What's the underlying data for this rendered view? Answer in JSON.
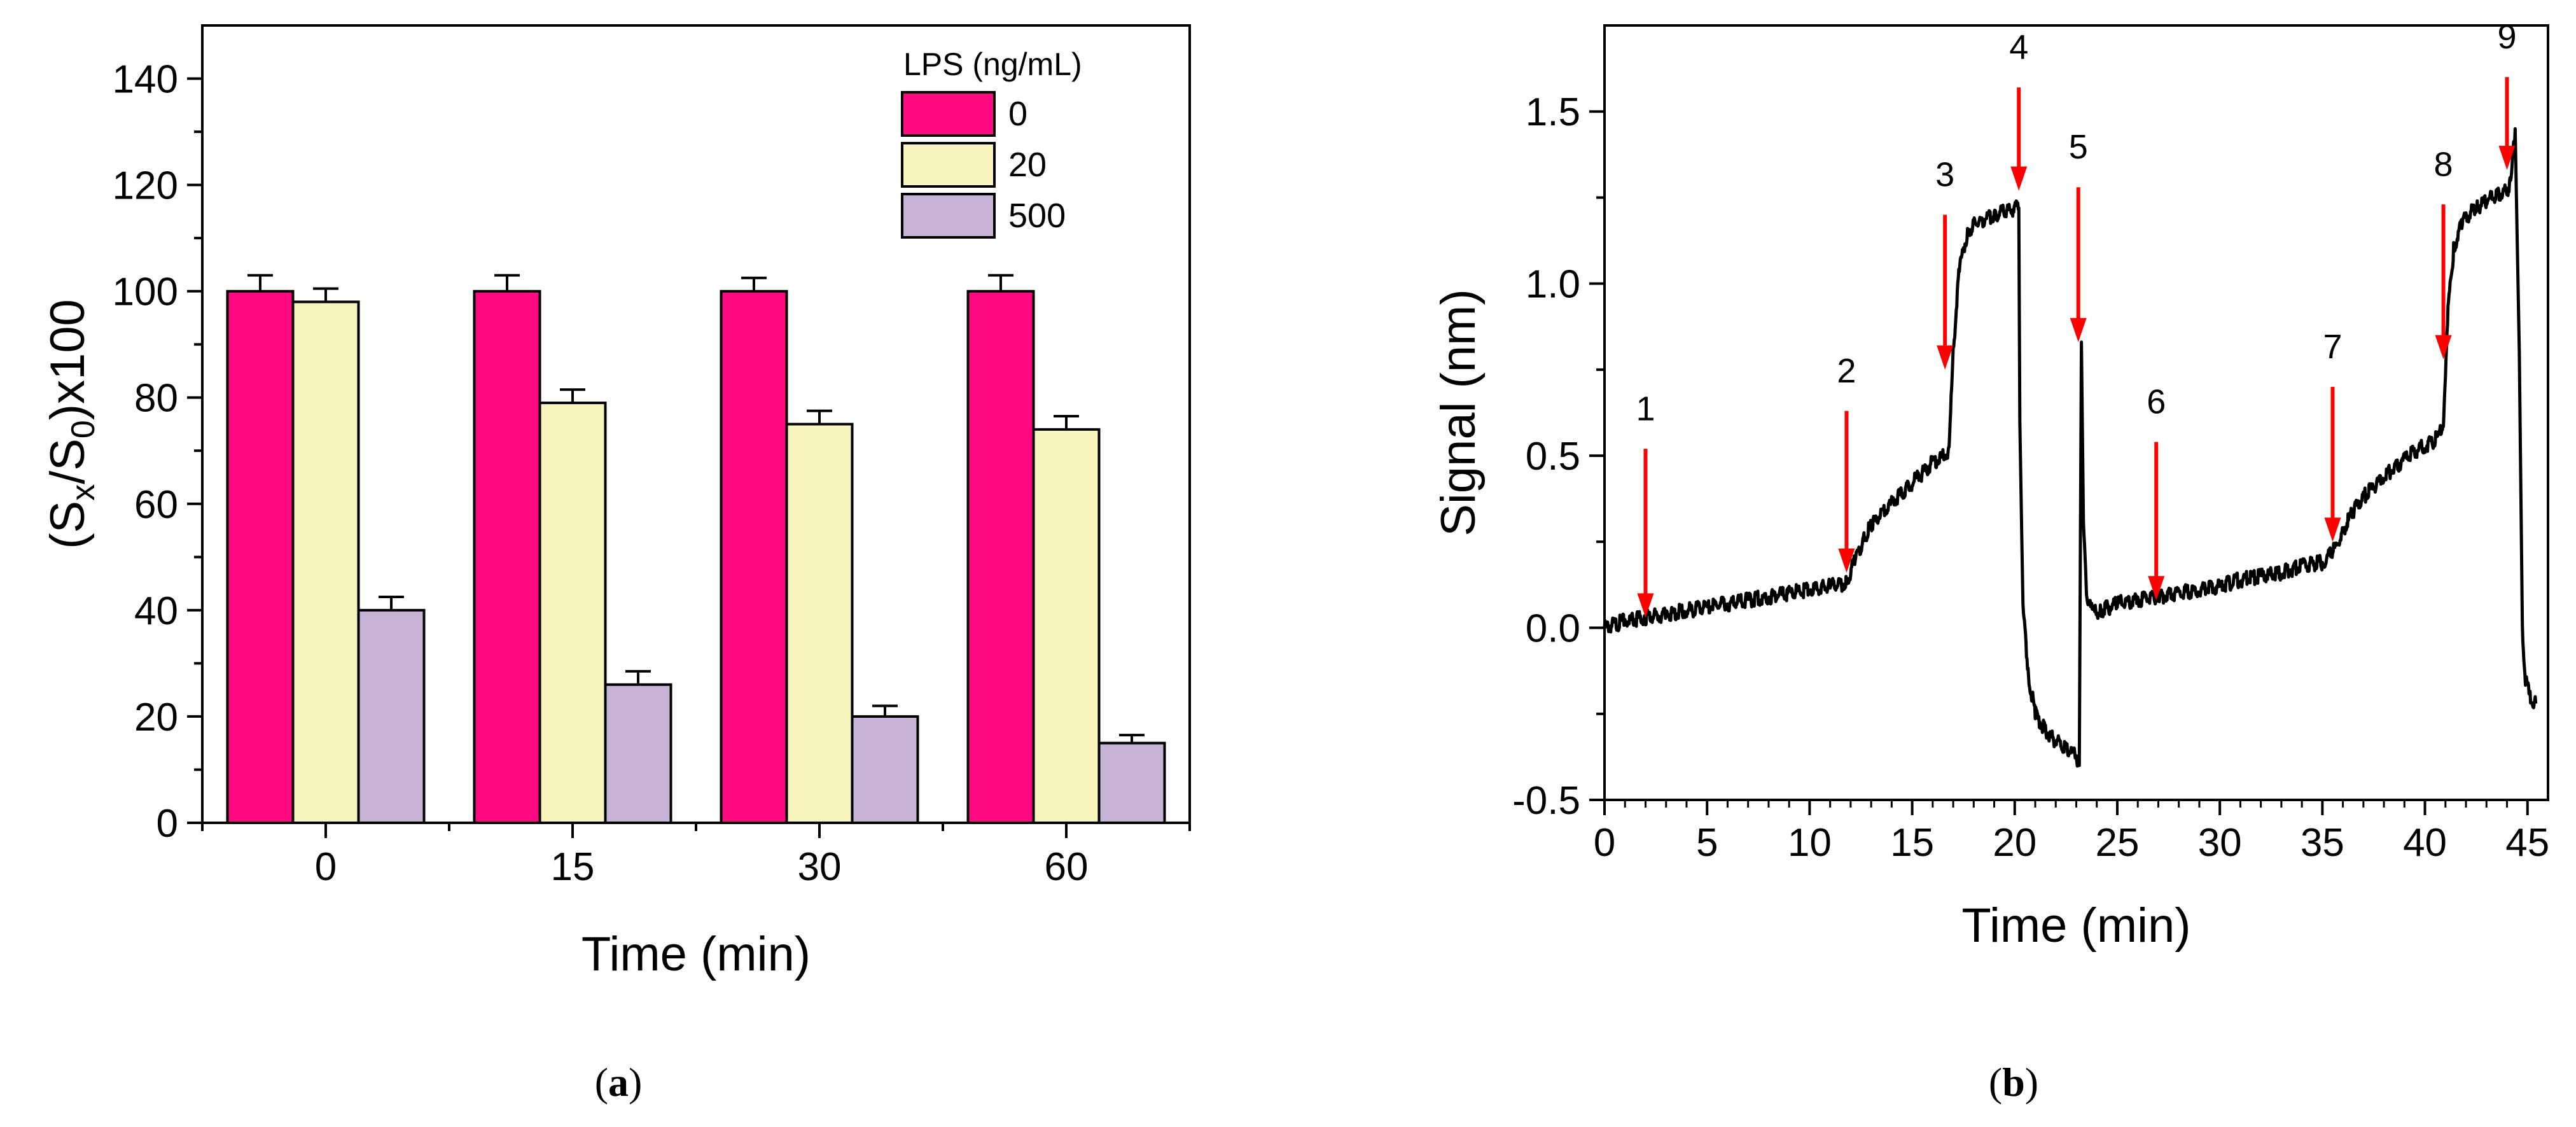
{
  "chart_data": [
    {
      "type": "bar",
      "categories": [
        "0",
        "15",
        "30",
        "60"
      ],
      "series": [
        {
          "name": "0",
          "values": [
            100,
            100,
            100,
            100
          ],
          "errors": [
            3,
            3,
            2.5,
            3
          ],
          "color": "#FF0A80"
        },
        {
          "name": "20",
          "values": [
            98,
            79,
            75,
            74
          ],
          "errors": [
            2.5,
            2.5,
            2.5,
            2.5
          ],
          "color": "#F8F4BE"
        },
        {
          "name": "500",
          "values": [
            40,
            26,
            20,
            15
          ],
          "errors": [
            2.5,
            2.5,
            2,
            1.5
          ],
          "color": "#C6B3D6"
        }
      ],
      "legend_title": "LPS (ng/mL)",
      "legend_position": "top-right",
      "xlabel": "Time (min)",
      "ylabel_parts": {
        "open": "(S",
        "sub1": "x",
        "mid": "/S",
        "sub2": "0",
        "close": ")x100"
      },
      "ylim": [
        0,
        150
      ],
      "yticks": [
        0,
        20,
        40,
        60,
        80,
        100,
        120,
        140
      ],
      "caption": {
        "open": "(",
        "letter": "a",
        "close": ")"
      }
    },
    {
      "type": "line",
      "xlabel": "Time (min)",
      "ylabel": "Signal (nm)",
      "xlim": [
        0,
        46
      ],
      "ylim": [
        -0.5,
        1.75
      ],
      "xticks": [
        0,
        5,
        10,
        15,
        20,
        25,
        30,
        35,
        40,
        45
      ],
      "yticks": [
        -0.5,
        0.0,
        0.5,
        1.0,
        1.5
      ],
      "ytick_labels": [
        "-0.5",
        "0.0",
        "0.5",
        "1.0",
        "1.5"
      ],
      "series": [
        {
          "color": "#000000",
          "x": [
            0,
            1,
            2,
            3,
            4,
            5,
            6,
            7,
            8,
            9,
            10,
            11,
            11.8,
            12.2,
            12.6,
            13,
            14,
            15,
            16,
            16.6,
            16.8,
            17.0,
            17.3,
            17.7,
            18.2,
            19,
            19.5,
            20.2,
            20.25,
            20.4,
            20.7,
            21,
            21.5,
            22,
            22.5,
            23.0,
            23.15,
            23.25,
            23.35,
            23.5,
            23.8,
            24.2,
            25,
            26,
            27,
            28,
            29,
            30,
            31,
            32,
            33,
            34,
            35,
            35.5,
            36,
            36.5,
            37,
            38,
            39,
            40,
            40.6,
            40.9,
            41.1,
            41.4,
            41.8,
            42.5,
            43,
            43.5,
            44,
            44.2,
            44.4,
            44.6,
            44.75,
            44.9,
            45.1,
            45.4
          ],
          "y": [
            0.0,
            0.02,
            0.03,
            0.04,
            0.05,
            0.06,
            0.07,
            0.08,
            0.09,
            0.1,
            0.11,
            0.12,
            0.13,
            0.2,
            0.25,
            0.3,
            0.36,
            0.42,
            0.48,
            0.5,
            0.52,
            0.8,
            1.05,
            1.15,
            1.18,
            1.2,
            1.21,
            1.22,
            0.6,
            0.05,
            -0.15,
            -0.25,
            -0.3,
            -0.33,
            -0.35,
            -0.37,
            -0.4,
            0.83,
            0.3,
            0.1,
            0.04,
            0.05,
            0.07,
            0.08,
            0.09,
            0.1,
            0.11,
            0.12,
            0.14,
            0.15,
            0.16,
            0.18,
            0.19,
            0.22,
            0.28,
            0.34,
            0.38,
            0.44,
            0.49,
            0.53,
            0.55,
            0.6,
            0.9,
            1.1,
            1.18,
            1.22,
            1.24,
            1.26,
            1.27,
            1.3,
            1.45,
            0.8,
            0.0,
            -0.15,
            -0.2,
            -0.22
          ]
        }
      ],
      "annotations": [
        {
          "label": "1",
          "x": 2.0,
          "y_tip": 0.03,
          "y_top": 0.52
        },
        {
          "label": "2",
          "x": 11.8,
          "y_tip": 0.16,
          "y_top": 0.63
        },
        {
          "label": "3",
          "x": 16.6,
          "y_tip": 0.75,
          "y_top": 1.2
        },
        {
          "label": "4",
          "x": 20.2,
          "y_tip": 1.27,
          "y_top": 1.57
        },
        {
          "label": "5",
          "x": 23.1,
          "y_tip": 0.83,
          "y_top": 1.28
        },
        {
          "label": "6",
          "x": 26.9,
          "y_tip": 0.08,
          "y_top": 0.54
        },
        {
          "label": "7",
          "x": 35.5,
          "y_tip": 0.25,
          "y_top": 0.7
        },
        {
          "label": "8",
          "x": 40.9,
          "y_tip": 0.78,
          "y_top": 1.23
        },
        {
          "label": "9",
          "x": 44.0,
          "y_tip": 1.33,
          "y_top": 1.6
        }
      ],
      "arrow_color": "#FF0000",
      "caption": {
        "open": "(",
        "letter": "b",
        "close": ")"
      }
    }
  ]
}
